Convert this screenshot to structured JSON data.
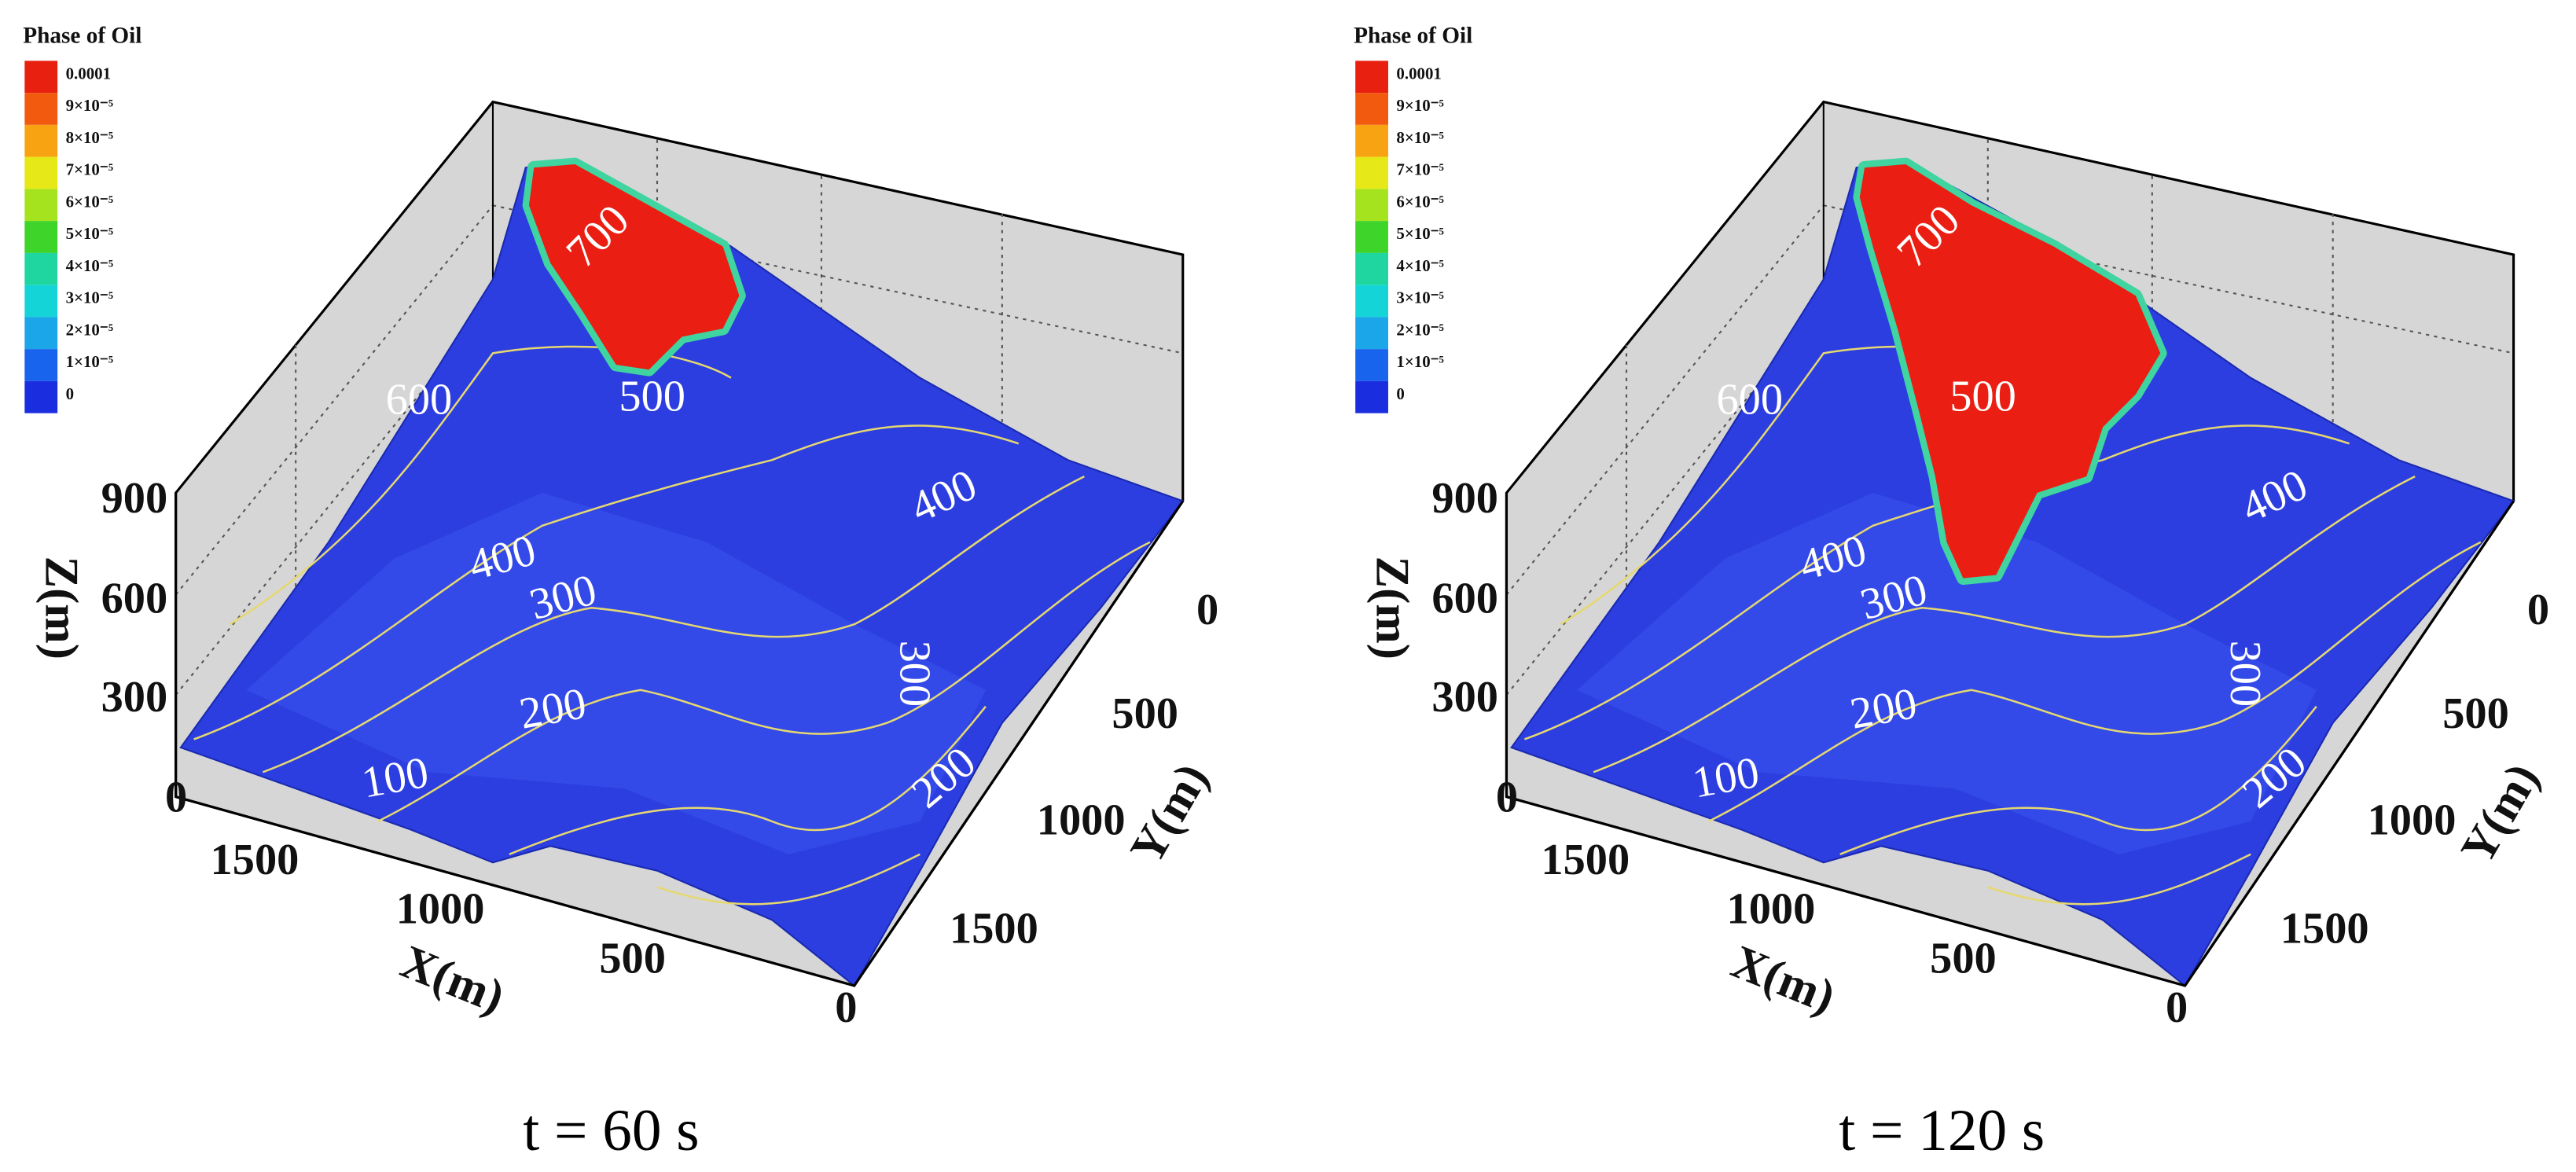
{
  "panels": [
    {
      "legend": {
        "title": "Phase of Oil",
        "labels": [
          "0.0001",
          "9×10⁻⁵",
          "8×10⁻⁵",
          "7×10⁻⁵",
          "6×10⁻⁵",
          "5×10⁻⁵",
          "4×10⁻⁵",
          "3×10⁻⁵",
          "2×10⁻⁵",
          "1×10⁻⁵",
          "0"
        ],
        "colors": [
          "#e8200f",
          "#f25a10",
          "#f7a312",
          "#e6e817",
          "#a6e31f",
          "#3fd42a",
          "#1fd6a0",
          "#14d4d8",
          "#1aa6e8",
          "#1864ec",
          "#1a2ee0"
        ]
      },
      "z_label": "Z(m)",
      "z_ticks": [
        "900",
        "600",
        "300",
        "0"
      ],
      "x_label": "X(m)",
      "x_ticks": [
        "1500",
        "1000",
        "500",
        "0"
      ],
      "y_label": "Y(m)",
      "y_ticks": [
        "0",
        "500",
        "1000",
        "1500"
      ],
      "contour_labels": [
        "700",
        "600",
        "500",
        "400",
        "300",
        "200",
        "100",
        "400",
        "300",
        "200"
      ],
      "caption": "t = 60 s"
    },
    {
      "legend": {
        "title": "Phase of Oil",
        "labels": [
          "0.0001",
          "9×10⁻⁵",
          "8×10⁻⁵",
          "7×10⁻⁵",
          "6×10⁻⁵",
          "5×10⁻⁵",
          "4×10⁻⁵",
          "3×10⁻⁵",
          "2×10⁻⁵",
          "1×10⁻⁵",
          "0"
        ],
        "colors": [
          "#e8200f",
          "#f25a10",
          "#f7a312",
          "#e6e817",
          "#a6e31f",
          "#3fd42a",
          "#1fd6a0",
          "#14d4d8",
          "#1aa6e8",
          "#1864ec",
          "#1a2ee0"
        ]
      },
      "z_label": "Z(m)",
      "z_ticks": [
        "900",
        "600",
        "300",
        "0"
      ],
      "x_label": "X(m)",
      "x_ticks": [
        "1500",
        "1000",
        "500",
        "0"
      ],
      "y_label": "Y(m)",
      "y_ticks": [
        "0",
        "500",
        "1000",
        "1500"
      ],
      "contour_labels": [
        "700",
        "600",
        "500",
        "400",
        "300",
        "200",
        "100",
        "400",
        "300",
        "200"
      ],
      "caption": "t = 120 s"
    }
  ]
}
